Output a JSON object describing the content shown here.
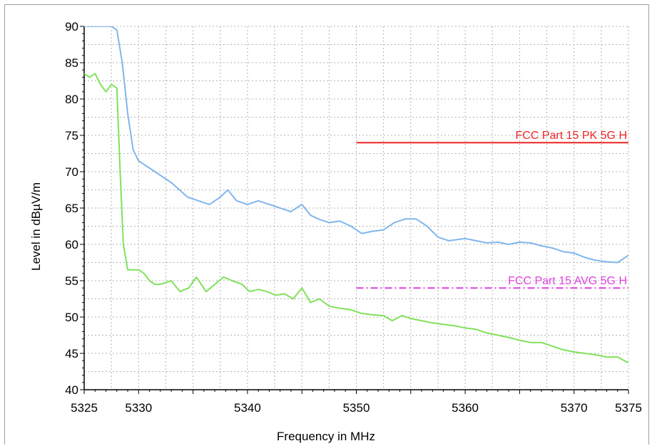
{
  "chart_data": {
    "type": "line",
    "xlabel": "Frequency in MHz",
    "ylabel": "Level in dBµV/m",
    "xlim": [
      5325,
      5375
    ],
    "ylim": [
      40,
      90
    ],
    "xticks": [
      "5325",
      "5330",
      "5340",
      "5350",
      "5360",
      "5370",
      "5375"
    ],
    "yticks": [
      "40",
      "45",
      "50",
      "55",
      "60",
      "65",
      "70",
      "75",
      "80",
      "85",
      "90"
    ],
    "grid": true,
    "series": [
      {
        "color": "#7fb6ec",
        "x": [
          5325,
          5325.5,
          5326.5,
          5327.0,
          5327.5,
          5328.0,
          5328.5,
          5329.0,
          5329.5,
          5330.0,
          5330.5,
          5331.5,
          5333,
          5334.5,
          5335.5,
          5336.5,
          5337.5,
          5338.2,
          5339,
          5340,
          5341,
          5342,
          5343,
          5344,
          5345,
          5345.8,
          5346.5,
          5347.5,
          5348.5,
          5349.5,
          5350.5,
          5351.5,
          5352.5,
          5353.5,
          5354.5,
          5355.5,
          5356.5,
          5357.5,
          5358.5,
          5360,
          5361,
          5362,
          5363,
          5364,
          5365,
          5366,
          5367,
          5368,
          5369,
          5370,
          5371,
          5372,
          5373,
          5374,
          5375
        ],
        "y": [
          90,
          90,
          90,
          90,
          90,
          89.5,
          85,
          78,
          73,
          71.5,
          71,
          70,
          68.5,
          66.5,
          66,
          65.5,
          66.5,
          67.5,
          66,
          65.5,
          66,
          65.5,
          65,
          64.5,
          65.5,
          64,
          63.5,
          63,
          63.2,
          62.5,
          61.5,
          61.8,
          62,
          63,
          63.5,
          63.5,
          62.5,
          61,
          60.5,
          60.8,
          60.5,
          60.2,
          60.3,
          60,
          60.3,
          60.2,
          59.8,
          59.5,
          59,
          58.8,
          58.2,
          57.8,
          57.6,
          57.5,
          58.5
        ]
      },
      {
        "color": "#80e25a",
        "x": [
          5325,
          5325.5,
          5326,
          5326.5,
          5327,
          5327.5,
          5328.0,
          5328.3,
          5328.6,
          5329.0,
          5329.5,
          5330,
          5330.5,
          5331,
          5331.5,
          5332,
          5333,
          5333.8,
          5334.6,
          5335.3,
          5336.2,
          5337,
          5337.8,
          5338.6,
          5339.5,
          5340.2,
          5341,
          5341.8,
          5342.6,
          5343.4,
          5344.2,
          5345,
          5345.8,
          5346.6,
          5347.5,
          5348.5,
          5349.5,
          5350.5,
          5351.5,
          5352.5,
          5353.3,
          5354.2,
          5355,
          5356,
          5357,
          5358,
          5359,
          5360,
          5361,
          5362,
          5363,
          5364,
          5365,
          5366,
          5367,
          5368,
          5369,
          5370,
          5371,
          5372,
          5373,
          5374,
          5375
        ],
        "y": [
          83.5,
          83,
          83.5,
          82,
          81,
          82,
          81.5,
          70,
          60,
          56.5,
          56.5,
          56.5,
          56,
          55,
          54.5,
          54.5,
          55,
          53.5,
          54,
          55.5,
          53.5,
          54.5,
          55.5,
          55,
          54.5,
          53.5,
          53.8,
          53.5,
          53,
          53.2,
          52.5,
          54,
          52,
          52.5,
          51.5,
          51.2,
          51,
          50.5,
          50.3,
          50.2,
          49.5,
          50.2,
          49.8,
          49.5,
          49.2,
          49,
          48.8,
          48.5,
          48.3,
          47.8,
          47.5,
          47.2,
          46.8,
          46.5,
          46.5,
          46,
          45.5,
          45.2,
          45,
          44.8,
          44.5,
          44.5,
          43.7
        ]
      }
    ],
    "limits": [
      {
        "label": "FCC Part 15  PK  5G  H",
        "value": 74,
        "x_start": 5350,
        "x_end": 5375,
        "color": "#ee2424",
        "style": "solid"
      },
      {
        "label": "FCC Part 15  AVG  5G  H",
        "value": 54,
        "x_start": 5350,
        "x_end": 5375,
        "color": "#e040e0",
        "style": "dashdot"
      }
    ]
  }
}
